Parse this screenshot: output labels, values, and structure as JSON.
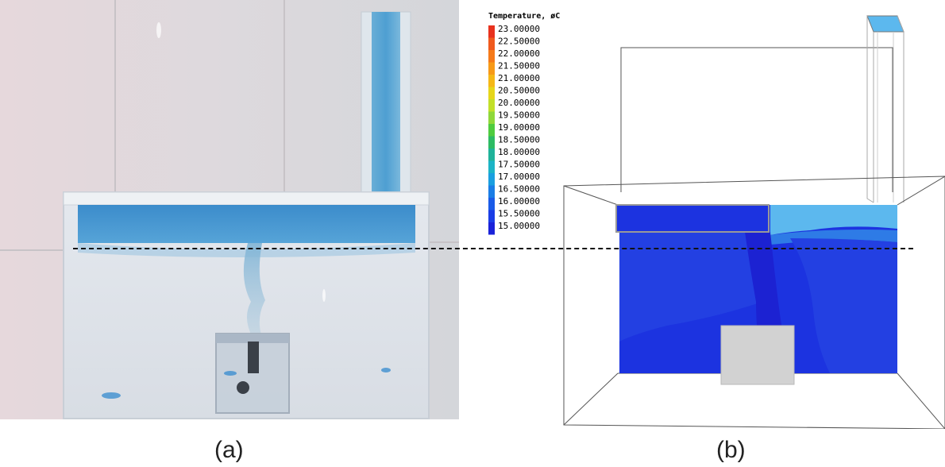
{
  "captions": {
    "a": "(a)",
    "b": "(b)"
  },
  "legend": {
    "title": "Temperature, øC",
    "ticks": [
      "23.00000",
      "22.50000",
      "22.00000",
      "21.50000",
      "21.00000",
      "20.50000",
      "20.00000",
      "19.50000",
      "19.00000",
      "18.50000",
      "18.00000",
      "17.50000",
      "17.00000",
      "16.50000",
      "16.00000",
      "15.50000",
      "15.00000"
    ],
    "colors": [
      "#e8321e",
      "#f05a1e",
      "#f57a1a",
      "#f79a18",
      "#f5b817",
      "#e6d61b",
      "#c2e02a",
      "#8fd83a",
      "#4fcc3f",
      "#2dbb64",
      "#1fb39a",
      "#1cb4c6",
      "#1a9fe0",
      "#1a7de6",
      "#1a5be8",
      "#1a3de6",
      "#1a22d9"
    ]
  },
  "colors": {
    "room_light": "#5cb8ee",
    "room_mid": "#2e7be6",
    "room_dark": "#1c33e0",
    "room_deep": "#1c22d2",
    "obstacle": "#d2d2d2",
    "wireframe": "#555555"
  }
}
